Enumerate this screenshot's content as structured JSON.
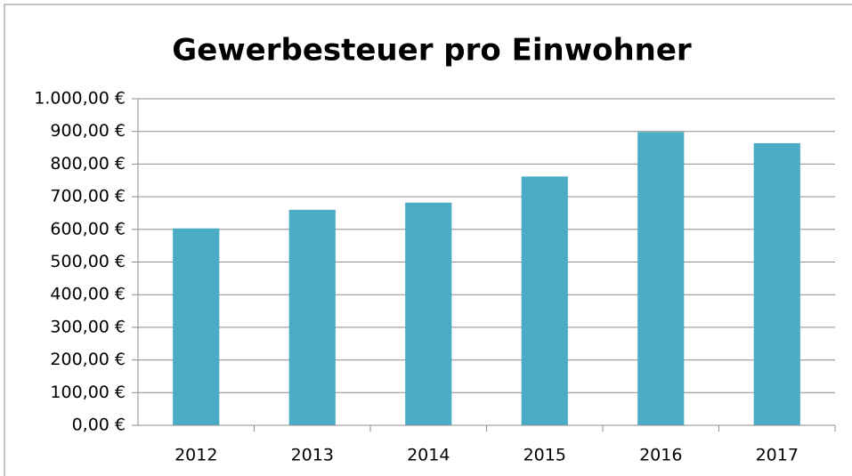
{
  "chart_data": {
    "type": "bar",
    "title": "Gewerbesteuer pro Einwohner",
    "categories": [
      "2012",
      "2013",
      "2014",
      "2015",
      "2016",
      "2017"
    ],
    "values": [
      603,
      660,
      682,
      762,
      898,
      864
    ],
    "color": "#4bacc6",
    "ylim": [
      0,
      1000
    ],
    "yticks": [
      {
        "value": 0,
        "label": "0,00 €"
      },
      {
        "value": 100,
        "label": "100,00 €"
      },
      {
        "value": 200,
        "label": "200,00 €"
      },
      {
        "value": 300,
        "label": "300,00 €"
      },
      {
        "value": 400,
        "label": "400,00 €"
      },
      {
        "value": 500,
        "label": "500,00 €"
      },
      {
        "value": 600,
        "label": "600,00 €"
      },
      {
        "value": 700,
        "label": "700,00 €"
      },
      {
        "value": 800,
        "label": "800,00 €"
      },
      {
        "value": 900,
        "label": "900,00 €"
      },
      {
        "value": 1000,
        "label": "1.000,00 €"
      }
    ],
    "grid": true
  }
}
